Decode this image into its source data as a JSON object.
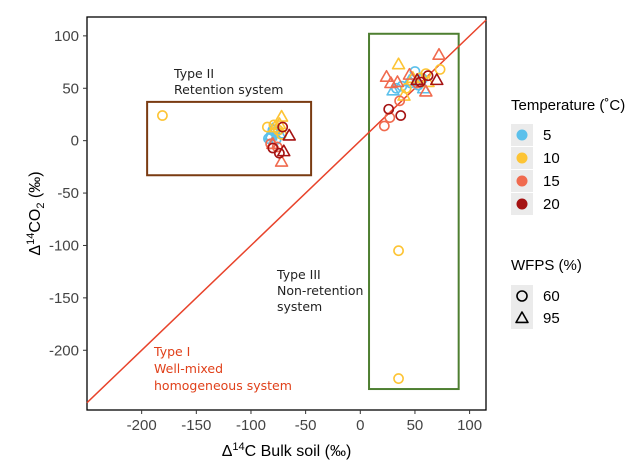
{
  "chart_data": {
    "type": "scatter",
    "xlabel": "Δ14C Bulk soil (‰)",
    "ylabel": "Δ14CO2 (‰)",
    "xlim": [
      -250,
      115
    ],
    "ylim": [
      -257,
      118
    ],
    "xticks": [
      "-200",
      "-150",
      "-100",
      "-50",
      "0",
      "50",
      "100"
    ],
    "yticks": [
      "100",
      "50",
      "0",
      "-50",
      "-100",
      "-150",
      "-200"
    ],
    "grid": false,
    "legend_position": "right",
    "colors": {
      "t5": "#5bc0eb",
      "t10": "#fdc434",
      "t15": "#f06a4e",
      "t20": "#a51212",
      "one_to_one_line": "#e8432b",
      "box_type2": "#7a3b12",
      "box_type3": "#4e7f31"
    },
    "legend": {
      "temperature_title": "Temperature (˚C)",
      "temperature_items": [
        "5",
        "10",
        "15",
        "20"
      ],
      "wfps_title": "WFPS (%)",
      "wfps_items": [
        {
          "label": "60",
          "shape": "circle"
        },
        {
          "label": "95",
          "shape": "triangle"
        }
      ]
    },
    "annotations": {
      "type1": [
        "Type I",
        "Well-mixed",
        "homogeneous system"
      ],
      "type2": [
        "Type II",
        "Retention system"
      ],
      "type3": [
        "Type III",
        "Non-retention",
        "system"
      ]
    },
    "boxes": [
      {
        "name": "type2",
        "x": [
          -195,
          -45
        ],
        "y": [
          -33,
          37
        ]
      },
      {
        "name": "type3",
        "x": [
          8,
          90
        ],
        "y": [
          -237,
          102
        ]
      }
    ],
    "series": [
      {
        "temperature": "5",
        "wfps": "60",
        "shape": "circle",
        "points": [
          [
            -82,
            4
          ],
          [
            -80,
            10
          ],
          [
            -84,
            2
          ],
          [
            -77,
            1
          ],
          [
            -78,
            8
          ],
          [
            38,
            52
          ],
          [
            46,
            55
          ],
          [
            50,
            66
          ],
          [
            57,
            59
          ],
          [
            33,
            50
          ],
          [
            53,
            53
          ]
        ]
      },
      {
        "temperature": "5",
        "wfps": "95",
        "shape": "triangle",
        "points": [
          [
            -80,
            11
          ],
          [
            -74,
            7
          ],
          [
            -82,
            5
          ],
          [
            30,
            48
          ],
          [
            58,
            50
          ],
          [
            45,
            57
          ]
        ]
      },
      {
        "temperature": "10",
        "wfps": "60",
        "shape": "circle",
        "points": [
          -181,
          24
        ],
        "points_list": [
          [
            -181,
            24
          ],
          [
            -85,
            13
          ],
          [
            -79,
            15
          ],
          [
            -75,
            10
          ],
          [
            -72,
            6
          ],
          [
            35,
            -105
          ],
          [
            35,
            -227
          ],
          [
            73,
            68
          ],
          [
            42,
            50
          ],
          [
            55,
            60
          ],
          [
            60,
            64
          ]
        ]
      },
      {
        "temperature": "10",
        "wfps": "95",
        "shape": "triangle",
        "points": [
          [
            -72,
            23
          ],
          [
            -78,
            13
          ],
          [
            -74,
            16
          ],
          [
            35,
            73
          ],
          [
            40,
            43
          ],
          [
            48,
            60
          ],
          [
            62,
            56
          ]
        ]
      },
      {
        "temperature": "15",
        "wfps": "60",
        "shape": "circle",
        "points": [
          [
            -82,
            -3
          ],
          [
            -76,
            -6
          ],
          [
            22,
            14
          ],
          [
            27,
            22
          ],
          [
            36,
            38
          ],
          [
            52,
            55
          ]
        ]
      },
      {
        "temperature": "15",
        "wfps": "95",
        "shape": "triangle",
        "points": [
          [
            -72,
            -20
          ],
          [
            -80,
            -3
          ],
          [
            24,
            61
          ],
          [
            28,
            55
          ],
          [
            34,
            56
          ],
          [
            72,
            82
          ],
          [
            60,
            47
          ],
          [
            45,
            63
          ]
        ]
      },
      {
        "temperature": "20",
        "wfps": "60",
        "shape": "circle",
        "points": [
          [
            -80,
            -7
          ],
          [
            -74,
            -12
          ],
          [
            -71,
            13
          ],
          [
            26,
            30
          ],
          [
            37,
            24
          ],
          [
            55,
            56
          ],
          [
            62,
            62
          ]
        ]
      },
      {
        "temperature": "20",
        "wfps": "95",
        "shape": "triangle",
        "points": [
          [
            -65,
            5
          ],
          [
            -70,
            -10
          ],
          [
            52,
            58
          ],
          [
            70,
            58
          ]
        ]
      }
    ]
  }
}
